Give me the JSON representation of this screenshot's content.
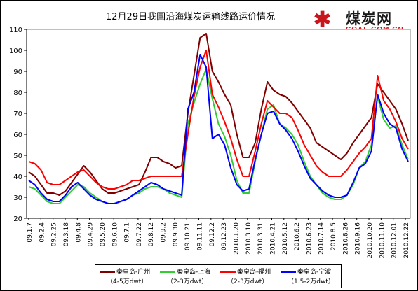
{
  "title": "12月29日我国沿海煤炭运输线路运价情况",
  "logo": {
    "cn": "煤炭网",
    "en": "COAL.COM.CN"
  },
  "colors": {
    "qhd_gz": "#800000",
    "qhd_sh": "#33cc33",
    "qhd_fz": "#ff0000",
    "qhd_nb": "#0000ff"
  },
  "chart_data": {
    "type": "line",
    "title": "12月29日我国沿海煤炭运输线路运价情况",
    "ylim": [
      20,
      110
    ],
    "y_ticks": [
      20,
      30,
      40,
      50,
      60,
      70,
      80,
      90,
      100,
      110
    ],
    "grid": false,
    "legend_position": "bottom",
    "x_labels": [
      "09.1.7",
      "09.2.4",
      "09.2.25",
      "09.3.18",
      "09.4.8",
      "09.4.29",
      "09.5.20",
      "09.6.10",
      "09.7.1",
      "09.7.22",
      "09.8.12",
      "09.9.2",
      "09.9.30",
      "09.10.21",
      "09.11.11",
      "09.12.2",
      "09.12.23",
      "2010.1.20",
      "2010.3.10",
      "2010.3.31",
      "2010.4.21",
      "2010.5.12",
      "2010.6.2",
      "2010.6.23",
      "2010.7.14",
      "2010.8.5",
      "2010.8.26",
      "2010.9.16",
      "2010.10.20",
      "2010.11.10",
      "2010.12.01",
      "2010.12.22"
    ],
    "series": [
      {
        "name": "秦皇岛-广州",
        "sub": "（4-5万dwt）",
        "color": "#800000",
        "values": [
          42,
          40,
          36,
          32,
          32,
          31,
          33,
          37,
          41,
          45,
          42,
          38,
          34,
          32,
          32,
          33,
          34,
          35,
          36,
          42,
          49,
          49,
          47,
          46,
          44,
          45,
          70,
          88,
          106,
          108,
          90,
          85,
          79,
          74,
          60,
          49,
          49,
          56,
          72,
          85,
          81,
          79,
          78,
          75,
          71,
          67,
          63,
          56,
          54,
          52,
          50,
          48,
          51,
          56,
          60,
          64,
          68,
          84,
          80,
          76,
          72,
          65,
          57
        ]
      },
      {
        "name": "秦皇岛-上海",
        "sub": "（2-3万dwt）",
        "color": "#33cc33",
        "values": [
          35,
          34,
          31,
          28,
          27,
          27,
          30,
          33,
          36,
          35,
          32,
          30,
          28,
          27,
          27,
          28,
          29,
          31,
          32,
          34,
          35,
          35,
          34,
          32,
          31,
          30,
          65,
          75,
          84,
          91,
          77,
          65,
          59,
          50,
          38,
          32,
          32,
          47,
          60,
          72,
          74,
          65,
          63,
          60,
          55,
          47,
          40,
          36,
          32,
          30,
          29,
          29,
          31,
          36,
          44,
          47,
          55,
          78,
          67,
          63,
          64,
          55,
          48
        ]
      },
      {
        "name": "秦皇岛-福州",
        "sub": "（2-3万dwt）",
        "color": "#ff0000",
        "values": [
          47,
          46,
          43,
          37,
          36,
          36,
          38,
          40,
          42,
          43,
          40,
          37,
          35,
          34,
          34,
          35,
          36,
          38,
          38,
          39,
          40,
          40,
          40,
          40,
          40,
          40,
          60,
          78,
          92,
          100,
          79,
          73,
          66,
          58,
          48,
          40,
          40,
          52,
          65,
          76,
          73,
          70,
          70,
          68,
          62,
          55,
          50,
          45,
          42,
          40,
          40,
          40,
          43,
          47,
          51,
          54,
          58,
          88,
          76,
          72,
          66,
          58,
          53
        ]
      },
      {
        "name": "秦皇岛-宁波",
        "sub": "（1.5-2万dwt）",
        "color": "#0000ff",
        "values": [
          38,
          36,
          32,
          29,
          28,
          28,
          31,
          35,
          37,
          34,
          31,
          29,
          28,
          27,
          27,
          28,
          29,
          31,
          33,
          35,
          37,
          36,
          34,
          33,
          32,
          31,
          72,
          80,
          98,
          92,
          58,
          60,
          55,
          44,
          36,
          33,
          34,
          48,
          60,
          70,
          71,
          65,
          62,
          58,
          52,
          45,
          39,
          36,
          33,
          31,
          30,
          30,
          31,
          37,
          44,
          46,
          52,
          79,
          70,
          65,
          63,
          53,
          47
        ]
      }
    ]
  }
}
